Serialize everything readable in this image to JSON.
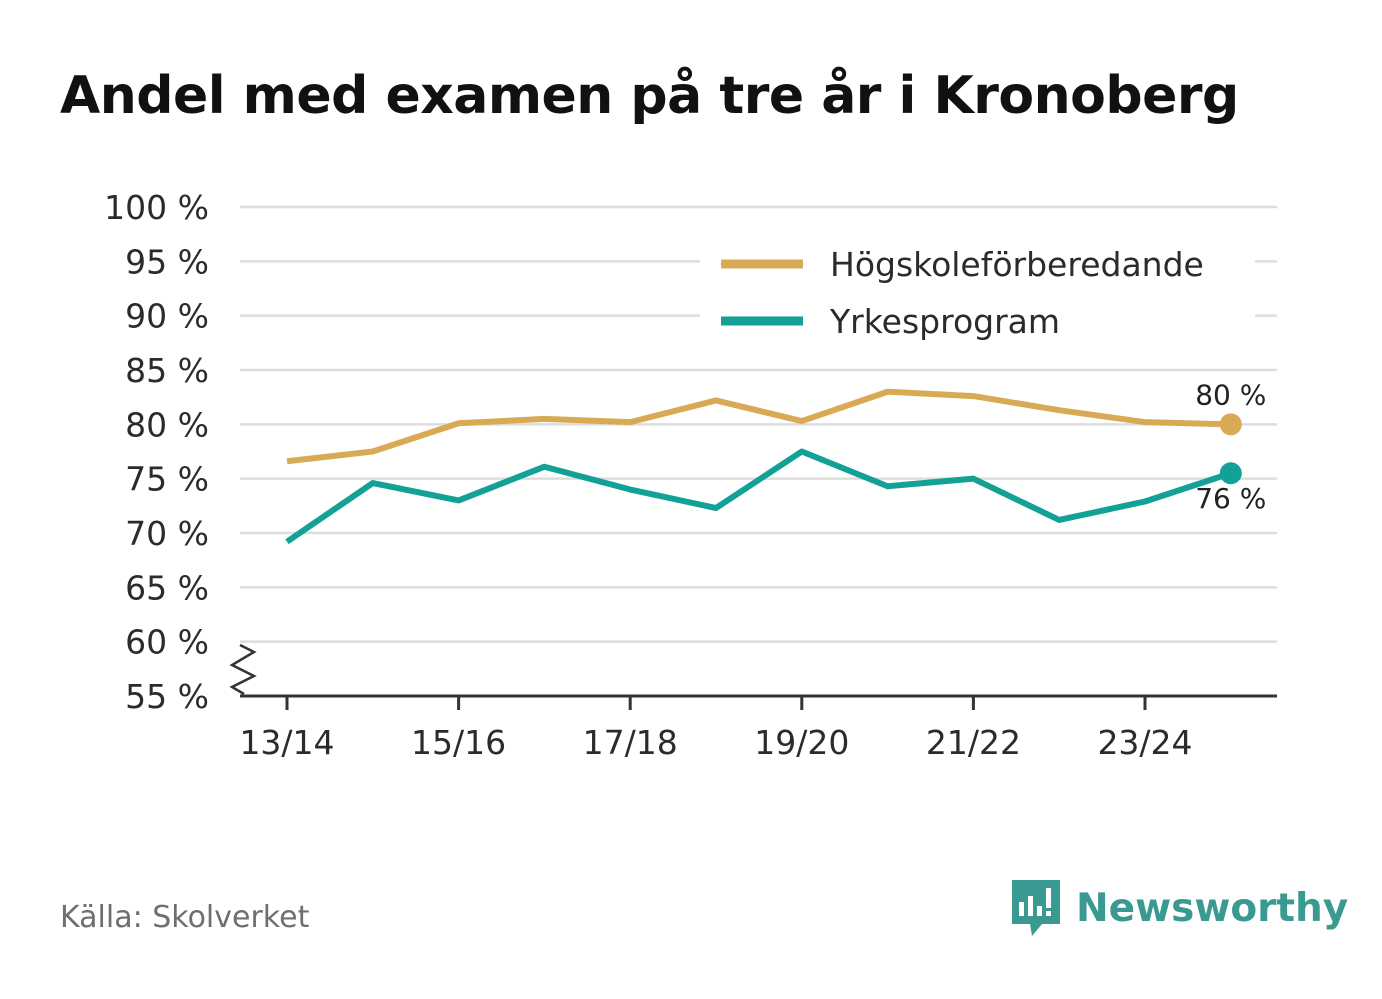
{
  "title": "Andel med examen på tre år i Kronoberg",
  "source": "Källa: Skolverket",
  "brand": {
    "name": "Newsworthy",
    "icon": "newsworthy-logo-icon"
  },
  "colors": {
    "hogskole": "#d9aa55",
    "yrkes": "#13a096",
    "grid": "#dddddd",
    "axis": "#333333",
    "brand": "#3a9a92"
  },
  "chart_data": {
    "type": "line",
    "title": "Andel med examen på tre år i Kronoberg",
    "xlabel": "",
    "ylabel": "",
    "x": [
      "13/14",
      "14/15",
      "15/16",
      "16/17",
      "17/18",
      "18/19",
      "19/20",
      "20/21",
      "21/22",
      "22/23",
      "23/24",
      "24/25"
    ],
    "x_tick_labels": [
      "13/14",
      "15/16",
      "17/18",
      "19/20",
      "21/22",
      "23/24"
    ],
    "ylim": [
      55,
      100
    ],
    "y_ticks": [
      55,
      60,
      65,
      70,
      75,
      80,
      85,
      90,
      95,
      100
    ],
    "y_tick_labels": [
      "55 %",
      "60 %",
      "65 %",
      "70 %",
      "75 %",
      "80 %",
      "85 %",
      "90 %",
      "95 %",
      "100 %"
    ],
    "axis_break": true,
    "grid": true,
    "legend_position": "top-right",
    "series": [
      {
        "name": "Högskoleförberedande",
        "color_key": "hogskole",
        "values": [
          76.6,
          77.5,
          80.1,
          80.5,
          80.2,
          82.2,
          80.3,
          83.0,
          82.6,
          81.3,
          80.2,
          80.0
        ],
        "end_label": "80 %",
        "end_label_position": "above"
      },
      {
        "name": "Yrkesprogram",
        "color_key": "yrkes",
        "values": [
          69.2,
          74.6,
          73.0,
          76.1,
          74.0,
          72.3,
          77.5,
          74.3,
          75.0,
          71.2,
          72.9,
          75.5
        ],
        "end_label": "76 %",
        "end_label_position": "below"
      }
    ]
  }
}
